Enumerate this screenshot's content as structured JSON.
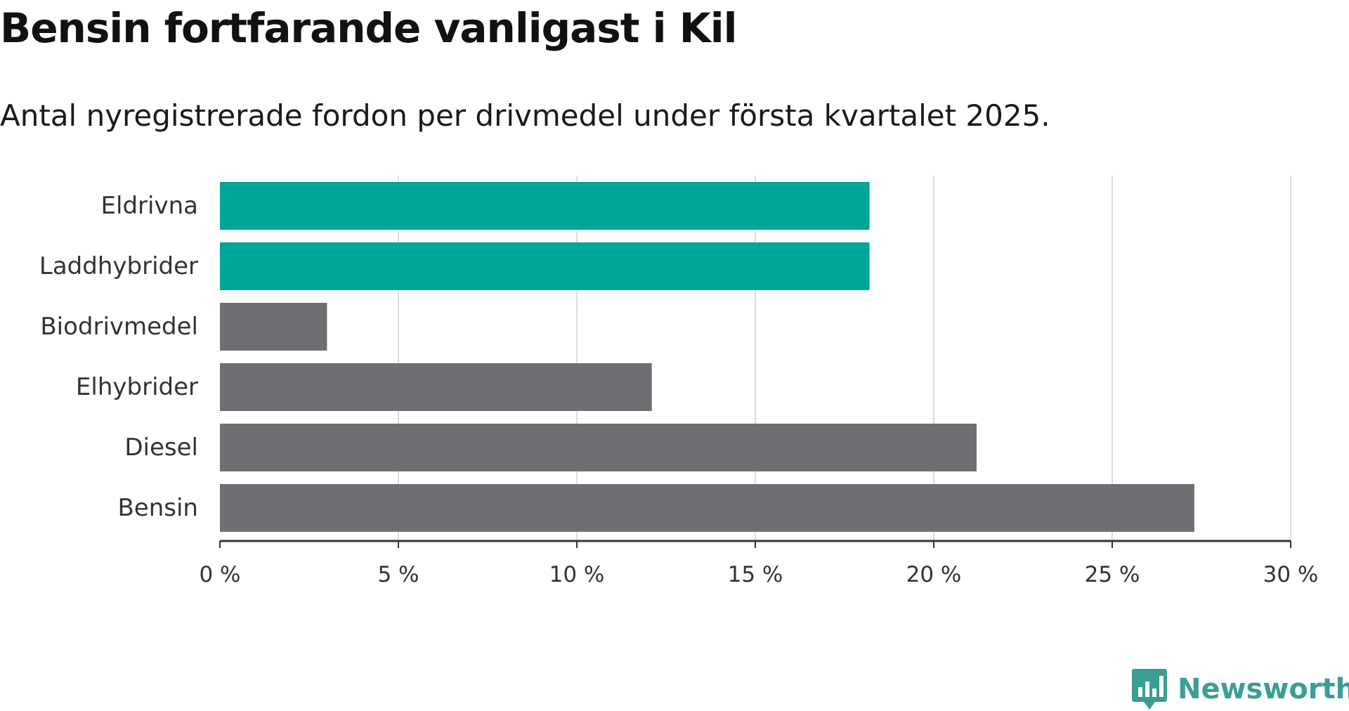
{
  "title": "Bensin fortfarande vanligast i Kil",
  "subtitle": "Antal nyregistrerade fordon per drivmedel under första kvartalet 2025.",
  "logo_text": "Newsworthy",
  "colors": {
    "highlight": "#00a59a",
    "default": "#6e6e73",
    "grid": "#dddddd",
    "axis": "#333333",
    "logo": "#3a9e95"
  },
  "chart_data": {
    "type": "bar",
    "orientation": "horizontal",
    "categories": [
      "Eldrivna",
      "Laddhybrider",
      "Biodrivmedel",
      "Elhybrider",
      "Diesel",
      "Bensin"
    ],
    "values": [
      18.2,
      18.2,
      3.0,
      12.1,
      21.2,
      27.3
    ],
    "highlighted": [
      true,
      true,
      false,
      false,
      false,
      false
    ],
    "unit": "%",
    "xlim": [
      0,
      30
    ],
    "ticks": [
      0,
      5,
      10,
      15,
      20,
      25,
      30
    ],
    "tick_labels": [
      "0 %",
      "5 %",
      "10 %",
      "15 %",
      "20 %",
      "25 %",
      "30 %"
    ],
    "grid": true
  }
}
